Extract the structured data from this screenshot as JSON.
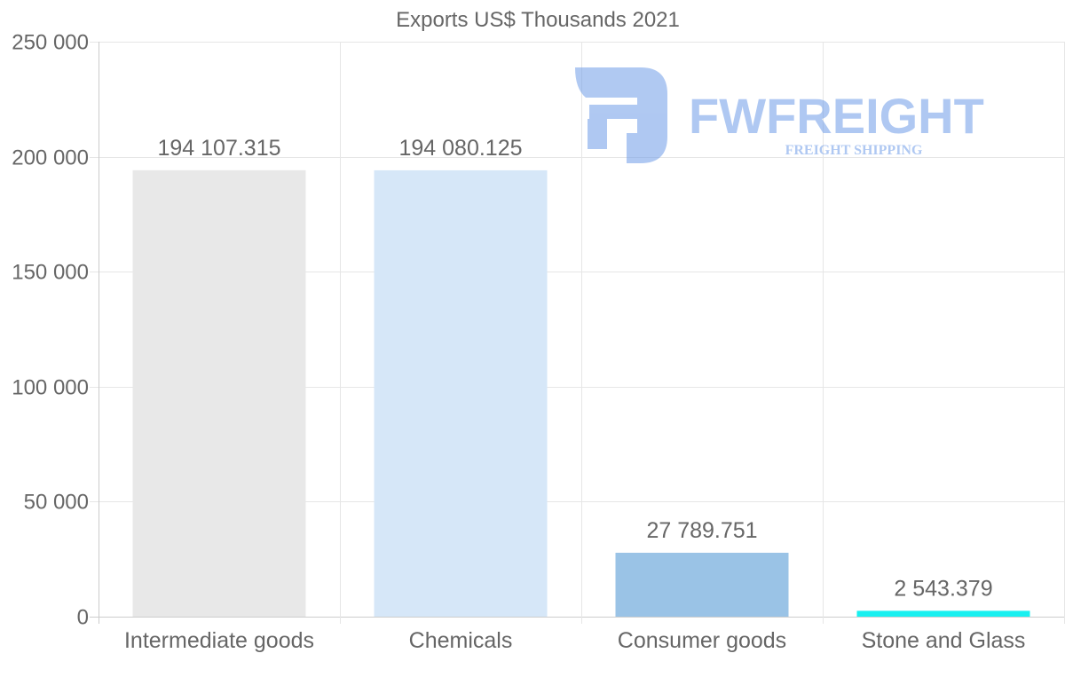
{
  "chart_data": {
    "type": "bar",
    "title": "Exports US$ Thousands 2021",
    "categories": [
      "Intermediate goods",
      "Chemicals",
      "Consumer goods",
      "Stone and Glass"
    ],
    "values": [
      194107.315,
      194080.125,
      27789.751,
      2543.379
    ],
    "value_labels": [
      "194 107.315",
      "194 080.125",
      "27 789.751",
      "2 543.379"
    ],
    "bar_colors": [
      "#e8e8e8",
      "#d6e7f8",
      "#9ac3e6",
      "#18f0f0"
    ],
    "ylim": [
      0,
      250000
    ],
    "yticks": [
      0,
      50000,
      100000,
      150000,
      200000,
      250000
    ],
    "ytick_labels": [
      "0",
      "50 000",
      "100 000",
      "150 000",
      "200 000",
      "250 000"
    ],
    "xlabel": "",
    "ylabel": "",
    "grid": true
  },
  "watermark": {
    "brand": "FWFREIGHT",
    "tagline": "FREIGHT SHIPPING",
    "color": "#6f9ce8"
  }
}
